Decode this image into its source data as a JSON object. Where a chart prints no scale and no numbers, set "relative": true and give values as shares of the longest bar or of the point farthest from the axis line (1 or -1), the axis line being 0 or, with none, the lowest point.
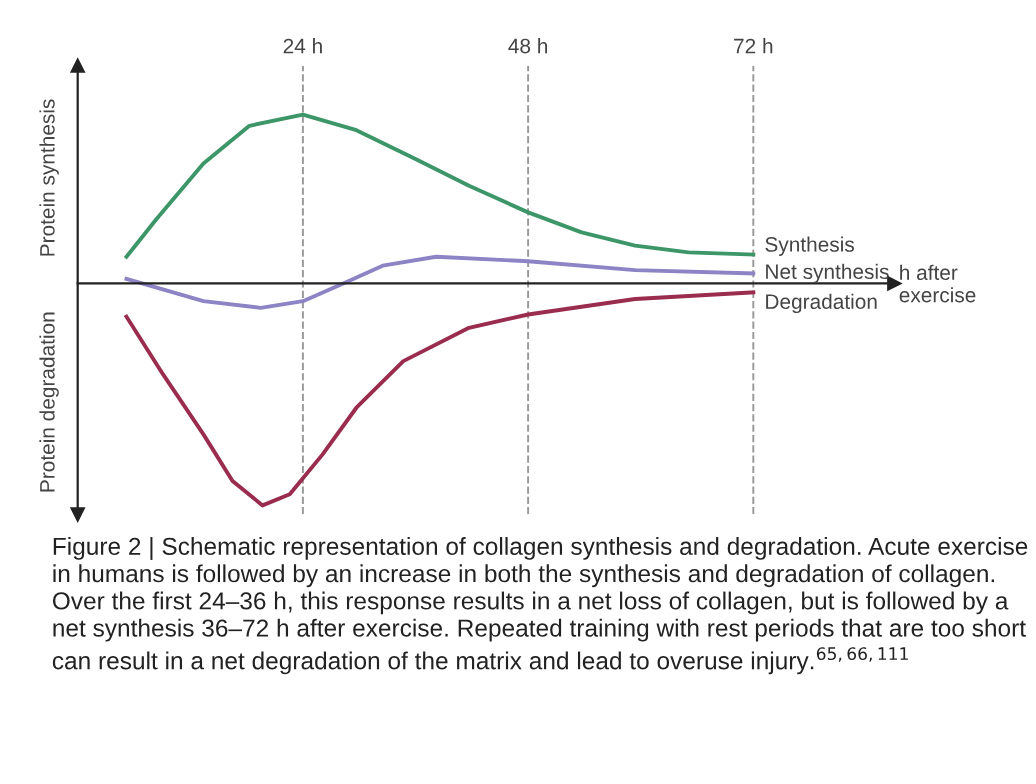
{
  "chart_data": {
    "type": "line",
    "relative": true,
    "ylabel": "Protein synthesis",
    "xlabel": "h after exercise",
    "xlim": [
      0,
      87
    ],
    "xticks": [
      {
        "value": 24,
        "label": "24 h"
      },
      {
        "value": 48,
        "label": "48 h"
      },
      {
        "value": 72,
        "label": "72 h"
      }
    ],
    "grid": "x",
    "marker": "none",
    "line_style": "solid",
    "series": [
      {
        "name": "Synthesis",
        "color": "#3c9668",
        "x": [
          5.2,
          8.4,
          13.4,
          18.3,
          24,
          29.7,
          36,
          41.7,
          48,
          53.7,
          59.4,
          65.1,
          72
        ],
        "values": [
          0.12,
          0.29,
          0.54,
          0.71,
          0.76,
          0.69,
          0.56,
          0.44,
          0.32,
          0.23,
          0.17,
          0.14,
          0.13
        ]
      },
      {
        "name": "Net synthesis",
        "color": "#8c84c4",
        "x": [
          5.2,
          13.4,
          19.5,
          24,
          28.3,
          32.5,
          38.2,
          48,
          59.4,
          72
        ],
        "values": [
          0.02,
          -0.08,
          -0.11,
          -0.08,
          0,
          0.08,
          0.12,
          0.1,
          0.06,
          0.045
        ]
      },
      {
        "name": "Degradation",
        "color": "#9a2c4e",
        "x": [
          5.2,
          9.1,
          13.4,
          16.5,
          19.7,
          22.6,
          26.1,
          29.7,
          34.7,
          41.7,
          48,
          59.4,
          72
        ],
        "values": [
          -0.15,
          -0.41,
          -0.68,
          -0.89,
          -1.0,
          -0.95,
          -0.77,
          -0.56,
          -0.35,
          -0.2,
          -0.14,
          -0.07,
          -0.04
        ]
      }
    ],
    "annotations": [
      "Protein degradation",
      "Figure 2 | Schematic representation of collagen synthesis and degradation. Acute exercise in humans is followed by an increase in both the synthesis and degradation of collagen. Over the first 24–36 h, this response results in a net loss of collagen, but is followed by a net synthesis 36–72 h after exercise. Repeated training with rest periods that are too short can result in a net degradation of the matrix and lead to overuse injury.$^{65,66,111}$"
    ]
  }
}
